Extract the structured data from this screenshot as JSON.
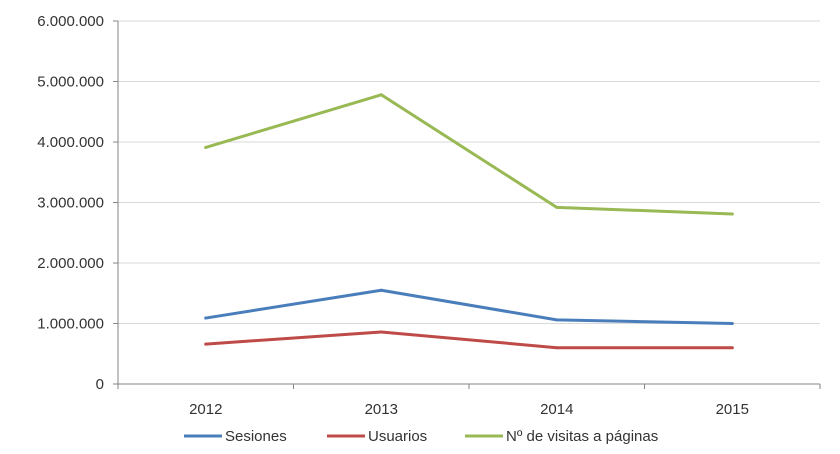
{
  "chart_data": {
    "type": "line",
    "title": "",
    "xlabel": "",
    "ylabel": "",
    "categories": [
      "2012",
      "2013",
      "2014",
      "2015"
    ],
    "ylim": [
      0,
      6000000
    ],
    "y_ticks": [
      0,
      1000000,
      2000000,
      3000000,
      4000000,
      5000000,
      6000000
    ],
    "y_tick_labels": [
      "0",
      "1.000.000",
      "2.000.000",
      "3.000.000",
      "4.000.000",
      "5.000.000",
      "6.000.000"
    ],
    "grid": "horizontal",
    "legend_position": "bottom",
    "series": [
      {
        "name": "Sesiones",
        "color": "#4a7ebb",
        "values": [
          1090000,
          1550000,
          1060000,
          1000000
        ]
      },
      {
        "name": "Usuarios",
        "color": "#be4b48",
        "values": [
          660000,
          860000,
          600000,
          600000
        ]
      },
      {
        "name": "Nº de visitas a páginas",
        "color": "#98b954",
        "values": [
          3910000,
          4780000,
          2920000,
          2810000
        ]
      }
    ]
  }
}
